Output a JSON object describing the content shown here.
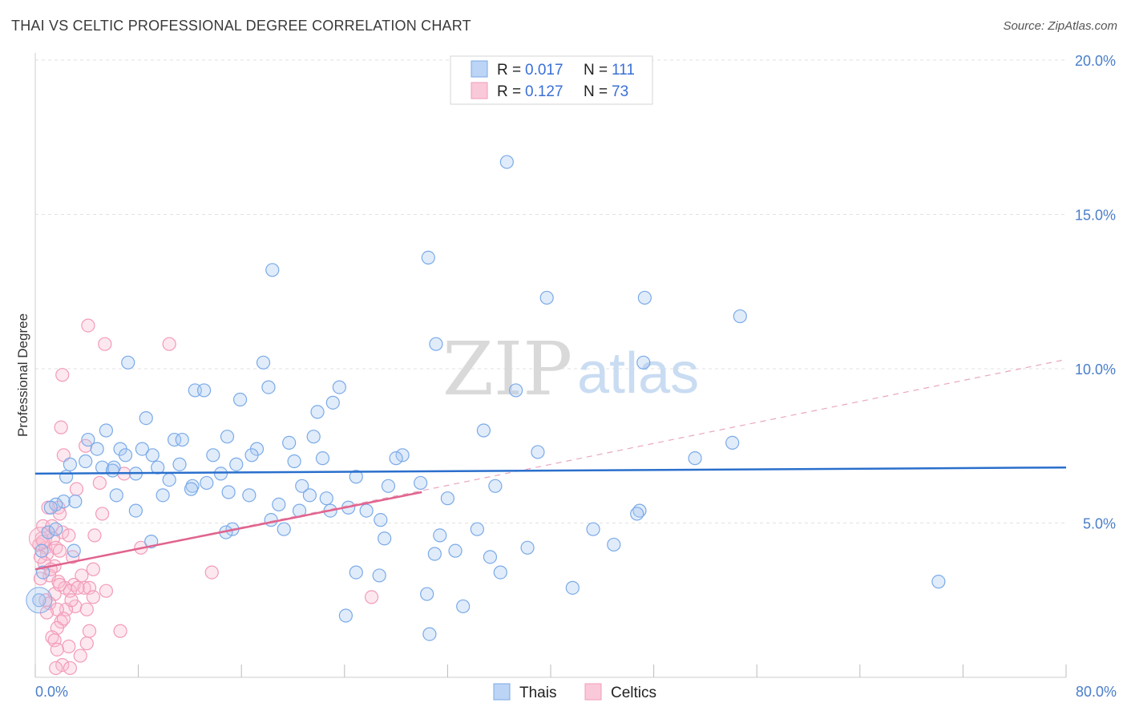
{
  "header": {
    "title": "THAI VS CELTIC PROFESSIONAL DEGREE CORRELATION CHART",
    "source": "Source: ZipAtlas.com"
  },
  "watermark": {
    "zip": "ZIP",
    "atlas": "atlas"
  },
  "chart_data": {
    "type": "scatter",
    "title": "THAI VS CELTIC PROFESSIONAL DEGREE CORRELATION CHART",
    "xlabel": "",
    "ylabel": "Professional Degree",
    "xlim": [
      0,
      80
    ],
    "ylim": [
      0,
      20
    ],
    "x_tick_labels": {
      "min": "0.0%",
      "max": "80.0%"
    },
    "y_ticks": [
      5,
      10,
      15,
      20
    ],
    "y_tick_labels": [
      "5.0%",
      "10.0%",
      "15.0%",
      "20.0%"
    ],
    "grid": true,
    "legend_position": "top-center",
    "colors": {
      "thais": "#7aaae8",
      "celtics": "#f29bb8",
      "thais_line": "#2a6fcc",
      "celtics_line": "#e0648f",
      "tick_text": "#4a7ec9"
    },
    "stats": [
      {
        "r_label": "R = ",
        "r": "0.017",
        "n_label": "N = ",
        "n": "111"
      },
      {
        "r_label": "R = ",
        "r": "0.127",
        "n_label": "N = ",
        "n": "73"
      }
    ],
    "series": [
      {
        "name": "Thais",
        "trend": {
          "x": [
            0,
            80
          ],
          "y": [
            6.6,
            6.8
          ]
        },
        "points": [
          [
            36.6,
            16.7
          ],
          [
            30.5,
            13.6
          ],
          [
            18.4,
            13.2
          ],
          [
            39.7,
            12.3
          ],
          [
            47.3,
            12.3
          ],
          [
            54.7,
            11.7
          ],
          [
            31.1,
            10.8
          ],
          [
            7.2,
            10.2
          ],
          [
            17.7,
            10.2
          ],
          [
            47.2,
            10.2
          ],
          [
            12.4,
            9.3
          ],
          [
            13.1,
            9.3
          ],
          [
            18.1,
            9.4
          ],
          [
            23.6,
            9.4
          ],
          [
            37.3,
            9.3
          ],
          [
            15.9,
            9.0
          ],
          [
            23.1,
            8.9
          ],
          [
            21.9,
            8.6
          ],
          [
            8.6,
            8.4
          ],
          [
            5.5,
            8.0
          ],
          [
            34.8,
            8.0
          ],
          [
            14.9,
            7.8
          ],
          [
            21.6,
            7.8
          ],
          [
            4.1,
            7.7
          ],
          [
            10.8,
            7.7
          ],
          [
            11.4,
            7.7
          ],
          [
            19.7,
            7.6
          ],
          [
            6.6,
            7.4
          ],
          [
            8.3,
            7.4
          ],
          [
            17.2,
            7.4
          ],
          [
            4.8,
            7.4
          ],
          [
            13.8,
            7.2
          ],
          [
            16.8,
            7.2
          ],
          [
            7.0,
            7.2
          ],
          [
            9.1,
            7.2
          ],
          [
            28.5,
            7.2
          ],
          [
            28.0,
            7.1
          ],
          [
            39.0,
            7.3
          ],
          [
            51.2,
            7.1
          ],
          [
            22.3,
            7.1
          ],
          [
            54.1,
            7.6
          ],
          [
            20.1,
            7.0
          ],
          [
            3.9,
            7.0
          ],
          [
            15.6,
            6.9
          ],
          [
            5.2,
            6.8
          ],
          [
            6.1,
            6.8
          ],
          [
            9.5,
            6.8
          ],
          [
            11.2,
            6.9
          ],
          [
            2.7,
            6.9
          ],
          [
            14.4,
            6.6
          ],
          [
            7.8,
            6.6
          ],
          [
            24.9,
            6.5
          ],
          [
            6.0,
            6.7
          ],
          [
            10.4,
            6.4
          ],
          [
            12.2,
            6.2
          ],
          [
            13.3,
            6.3
          ],
          [
            20.7,
            6.2
          ],
          [
            27.4,
            6.2
          ],
          [
            29.9,
            6.3
          ],
          [
            35.7,
            6.2
          ],
          [
            6.3,
            5.9
          ],
          [
            15.0,
            6.0
          ],
          [
            9.9,
            5.9
          ],
          [
            16.6,
            5.9
          ],
          [
            21.3,
            5.9
          ],
          [
            22.6,
            5.8
          ],
          [
            32.0,
            5.8
          ],
          [
            2.2,
            5.7
          ],
          [
            3.1,
            5.7
          ],
          [
            1.6,
            5.6
          ],
          [
            18.9,
            5.6
          ],
          [
            20.5,
            5.4
          ],
          [
            22.9,
            5.4
          ],
          [
            24.3,
            5.5
          ],
          [
            25.7,
            5.4
          ],
          [
            7.8,
            5.4
          ],
          [
            46.9,
            5.4
          ],
          [
            46.7,
            5.3
          ],
          [
            26.8,
            5.1
          ],
          [
            18.3,
            5.1
          ],
          [
            15.3,
            4.8
          ],
          [
            19.3,
            4.8
          ],
          [
            34.3,
            4.8
          ],
          [
            43.3,
            4.8
          ],
          [
            31.4,
            4.6
          ],
          [
            27.1,
            4.5
          ],
          [
            44.9,
            4.3
          ],
          [
            38.2,
            4.2
          ],
          [
            32.6,
            4.1
          ],
          [
            31.0,
            4.0
          ],
          [
            35.3,
            3.9
          ],
          [
            24.9,
            3.4
          ],
          [
            36.1,
            3.4
          ],
          [
            26.7,
            3.3
          ],
          [
            41.7,
            2.9
          ],
          [
            30.4,
            2.7
          ],
          [
            70.1,
            3.1
          ],
          [
            33.2,
            2.3
          ],
          [
            24.1,
            2.0
          ],
          [
            30.6,
            1.4
          ],
          [
            1.0,
            4.7
          ],
          [
            0.5,
            4.1
          ],
          [
            0.6,
            3.4
          ],
          [
            0.3,
            2.5
          ],
          [
            2.4,
            6.5
          ],
          [
            1.2,
            5.5
          ],
          [
            1.6,
            4.8
          ],
          [
            3.0,
            4.1
          ],
          [
            9.0,
            4.4
          ],
          [
            12.1,
            6.1
          ],
          [
            14.8,
            4.7
          ]
        ]
      },
      {
        "name": "Celtics",
        "trend": {
          "x": [
            0,
            30
          ],
          "y": [
            3.5,
            6.0
          ],
          "extended": {
            "x": [
              0,
              80
            ],
            "y": [
              3.5,
              10.3
            ]
          }
        },
        "points": [
          [
            4.1,
            11.4
          ],
          [
            5.4,
            10.8
          ],
          [
            10.4,
            10.8
          ],
          [
            2.1,
            9.8
          ],
          [
            2.0,
            8.1
          ],
          [
            2.2,
            7.2
          ],
          [
            3.9,
            7.5
          ],
          [
            6.9,
            6.6
          ],
          [
            5.0,
            6.3
          ],
          [
            3.2,
            6.1
          ],
          [
            1.8,
            5.5
          ],
          [
            1.0,
            5.5
          ],
          [
            1.9,
            5.3
          ],
          [
            5.2,
            5.3
          ],
          [
            0.6,
            4.9
          ],
          [
            1.0,
            4.7
          ],
          [
            2.1,
            4.7
          ],
          [
            1.4,
            4.5
          ],
          [
            4.6,
            4.6
          ],
          [
            0.3,
            4.3
          ],
          [
            0.8,
            4.2
          ],
          [
            1.6,
            4.2
          ],
          [
            8.2,
            4.2
          ],
          [
            2.9,
            3.9
          ],
          [
            0.9,
            4.0
          ],
          [
            1.5,
            3.6
          ],
          [
            4.5,
            3.5
          ],
          [
            13.7,
            3.4
          ],
          [
            1.1,
            3.3
          ],
          [
            0.4,
            3.2
          ],
          [
            1.8,
            3.1
          ],
          [
            3.0,
            3.0
          ],
          [
            3.8,
            2.9
          ],
          [
            2.3,
            2.9
          ],
          [
            4.2,
            2.9
          ],
          [
            5.5,
            2.8
          ],
          [
            1.5,
            2.7
          ],
          [
            2.7,
            2.8
          ],
          [
            0.8,
            2.5
          ],
          [
            1.1,
            2.4
          ],
          [
            3.1,
            2.3
          ],
          [
            2.4,
            2.2
          ],
          [
            1.7,
            2.2
          ],
          [
            4.0,
            2.2
          ],
          [
            26.1,
            2.6
          ],
          [
            2.0,
            1.8
          ],
          [
            1.7,
            1.6
          ],
          [
            4.2,
            1.5
          ],
          [
            6.6,
            1.5
          ],
          [
            1.3,
            1.3
          ],
          [
            1.5,
            1.2
          ],
          [
            2.6,
            1.0
          ],
          [
            1.7,
            0.9
          ],
          [
            3.5,
            0.7
          ],
          [
            2.1,
            0.4
          ],
          [
            1.6,
            0.3
          ],
          [
            2.7,
            0.3
          ],
          [
            0.5,
            4.5
          ],
          [
            0.7,
            3.7
          ],
          [
            1.2,
            3.5
          ],
          [
            2.6,
            4.6
          ],
          [
            3.3,
            2.9
          ],
          [
            4.5,
            2.6
          ],
          [
            1.9,
            3.0
          ],
          [
            0.4,
            3.9
          ],
          [
            0.9,
            2.1
          ],
          [
            2.2,
            1.9
          ],
          [
            1.3,
            4.9
          ],
          [
            3.6,
            3.3
          ],
          [
            0.6,
            4.4
          ],
          [
            1.9,
            4.1
          ],
          [
            2.8,
            2.5
          ],
          [
            4.0,
            1.1
          ]
        ]
      }
    ]
  },
  "bottom_legend": [
    {
      "label": "Thais"
    },
    {
      "label": "Celtics"
    }
  ]
}
